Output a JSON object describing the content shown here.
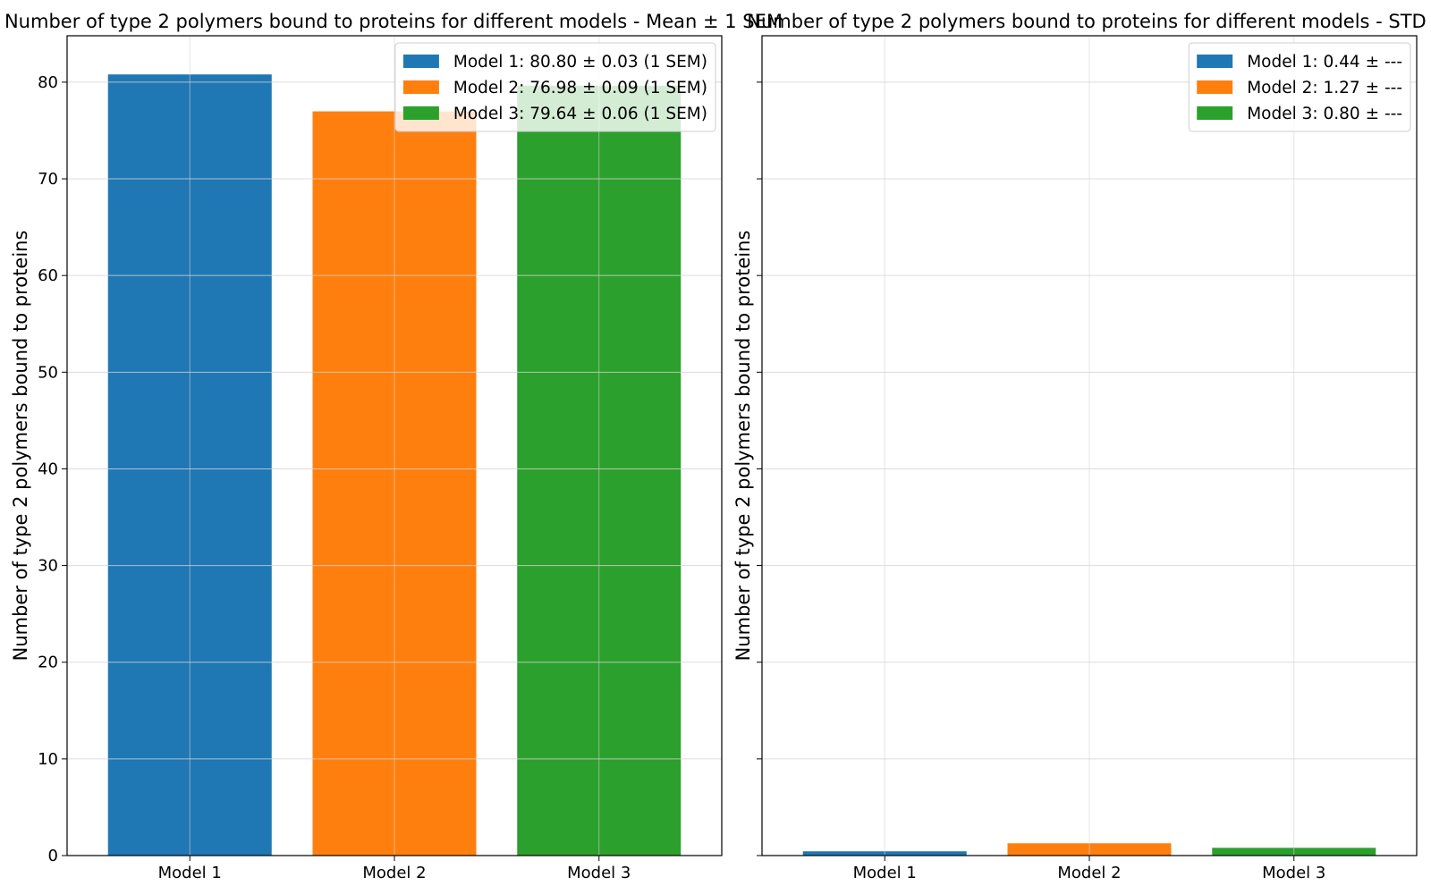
{
  "chart_data": [
    {
      "type": "bar",
      "title": "Number of type 2 polymers bound to proteins for different models - Mean ± 1 SEM",
      "xlabel": "",
      "ylabel": "Number of type 2 polymers bound to proteins",
      "categories": [
        "Model 1",
        "Model 2",
        "Model 3"
      ],
      "values": [
        80.8,
        76.98,
        79.64
      ],
      "colors": [
        "#1f77b4",
        "#ff7f0e",
        "#2ca02c"
      ],
      "legend": [
        "Model 1: 80.80 ± 0.03 (1 SEM)",
        "Model 2: 76.98 ± 0.09 (1 SEM)",
        "Model 3: 79.64 ± 0.06 (1 SEM)"
      ],
      "legend_position": "upper-right",
      "ylim": [
        0,
        84.8
      ],
      "yticks": [
        0,
        10,
        20,
        30,
        40,
        50,
        60,
        70,
        80
      ],
      "grid": true
    },
    {
      "type": "bar",
      "title": "Number of type 2 polymers bound to proteins for different models - STD",
      "xlabel": "",
      "ylabel": "Number of type 2 polymers bound to proteins",
      "categories": [
        "Model 1",
        "Model 2",
        "Model 3"
      ],
      "values": [
        0.44,
        1.27,
        0.8
      ],
      "colors": [
        "#1f77b4",
        "#ff7f0e",
        "#2ca02c"
      ],
      "legend": [
        "Model 1: 0.44 ± ---",
        "Model 2: 1.27 ± ---",
        "Model 3: 0.80 ± ---"
      ],
      "legend_position": "upper-right",
      "ylim": [
        0,
        84.8
      ],
      "yticks": [
        0,
        10,
        20,
        30,
        40,
        50,
        60,
        70,
        80
      ],
      "show_ytick_labels": false,
      "grid": true
    }
  ]
}
